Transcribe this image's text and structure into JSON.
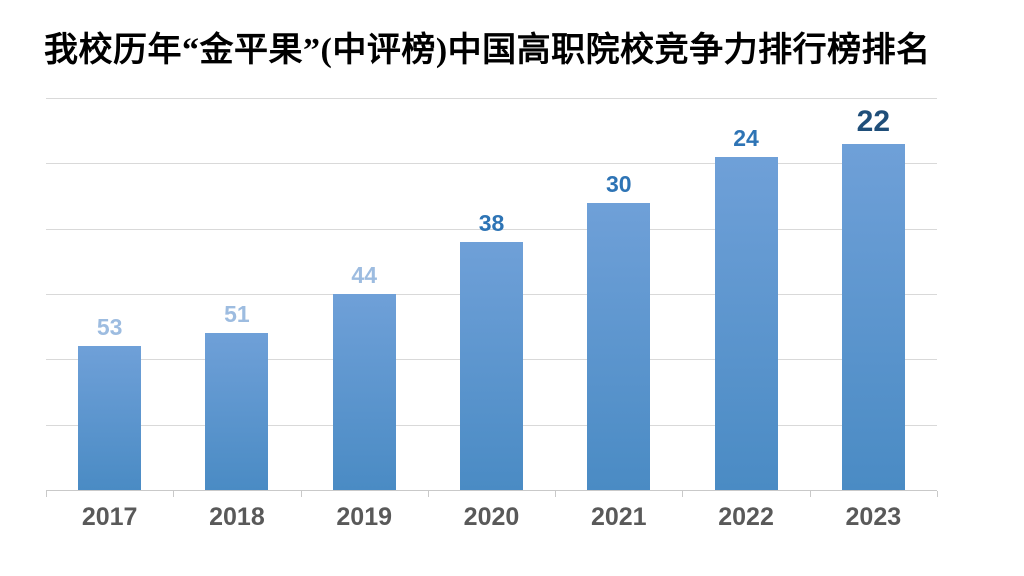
{
  "chart_data": {
    "type": "bar",
    "title": "我校历年“金平果”(中评榜)中国高职院校竞争力排行榜排名",
    "categories": [
      "2017",
      "2018",
      "2019",
      "2020",
      "2021",
      "2022",
      "2023"
    ],
    "values": [
      53,
      51,
      44,
      38,
      30,
      24,
      22
    ],
    "xlabel": "",
    "ylabel": "",
    "legend": {
      "visible": false
    },
    "axis": {
      "y_min": 0,
      "y_max": 60,
      "gridline_step": 10,
      "gridlines_visible": true,
      "y_tick_labels_visible": false
    },
    "bar_height_units": [
      22,
      24,
      30,
      38,
      44,
      51,
      53
    ],
    "value_note": "values are ranking positions; bars are drawn taller as rank improves",
    "data_label_colors": [
      "#9DBCE0",
      "#9DBCE0",
      "#9DBCE0",
      "#2E74B5",
      "#2E74B5",
      "#2E74B5",
      "#1F4E79"
    ],
    "emphasized_index": 6
  },
  "colors": {
    "background": "#FFFFFF",
    "title": "#000000",
    "bar_top": "#6FA0D8",
    "bar_bottom": "#4A8BC4",
    "gridline": "#D9D9D9",
    "axis_line": "#C9C9C9",
    "year_label": "#595959"
  }
}
